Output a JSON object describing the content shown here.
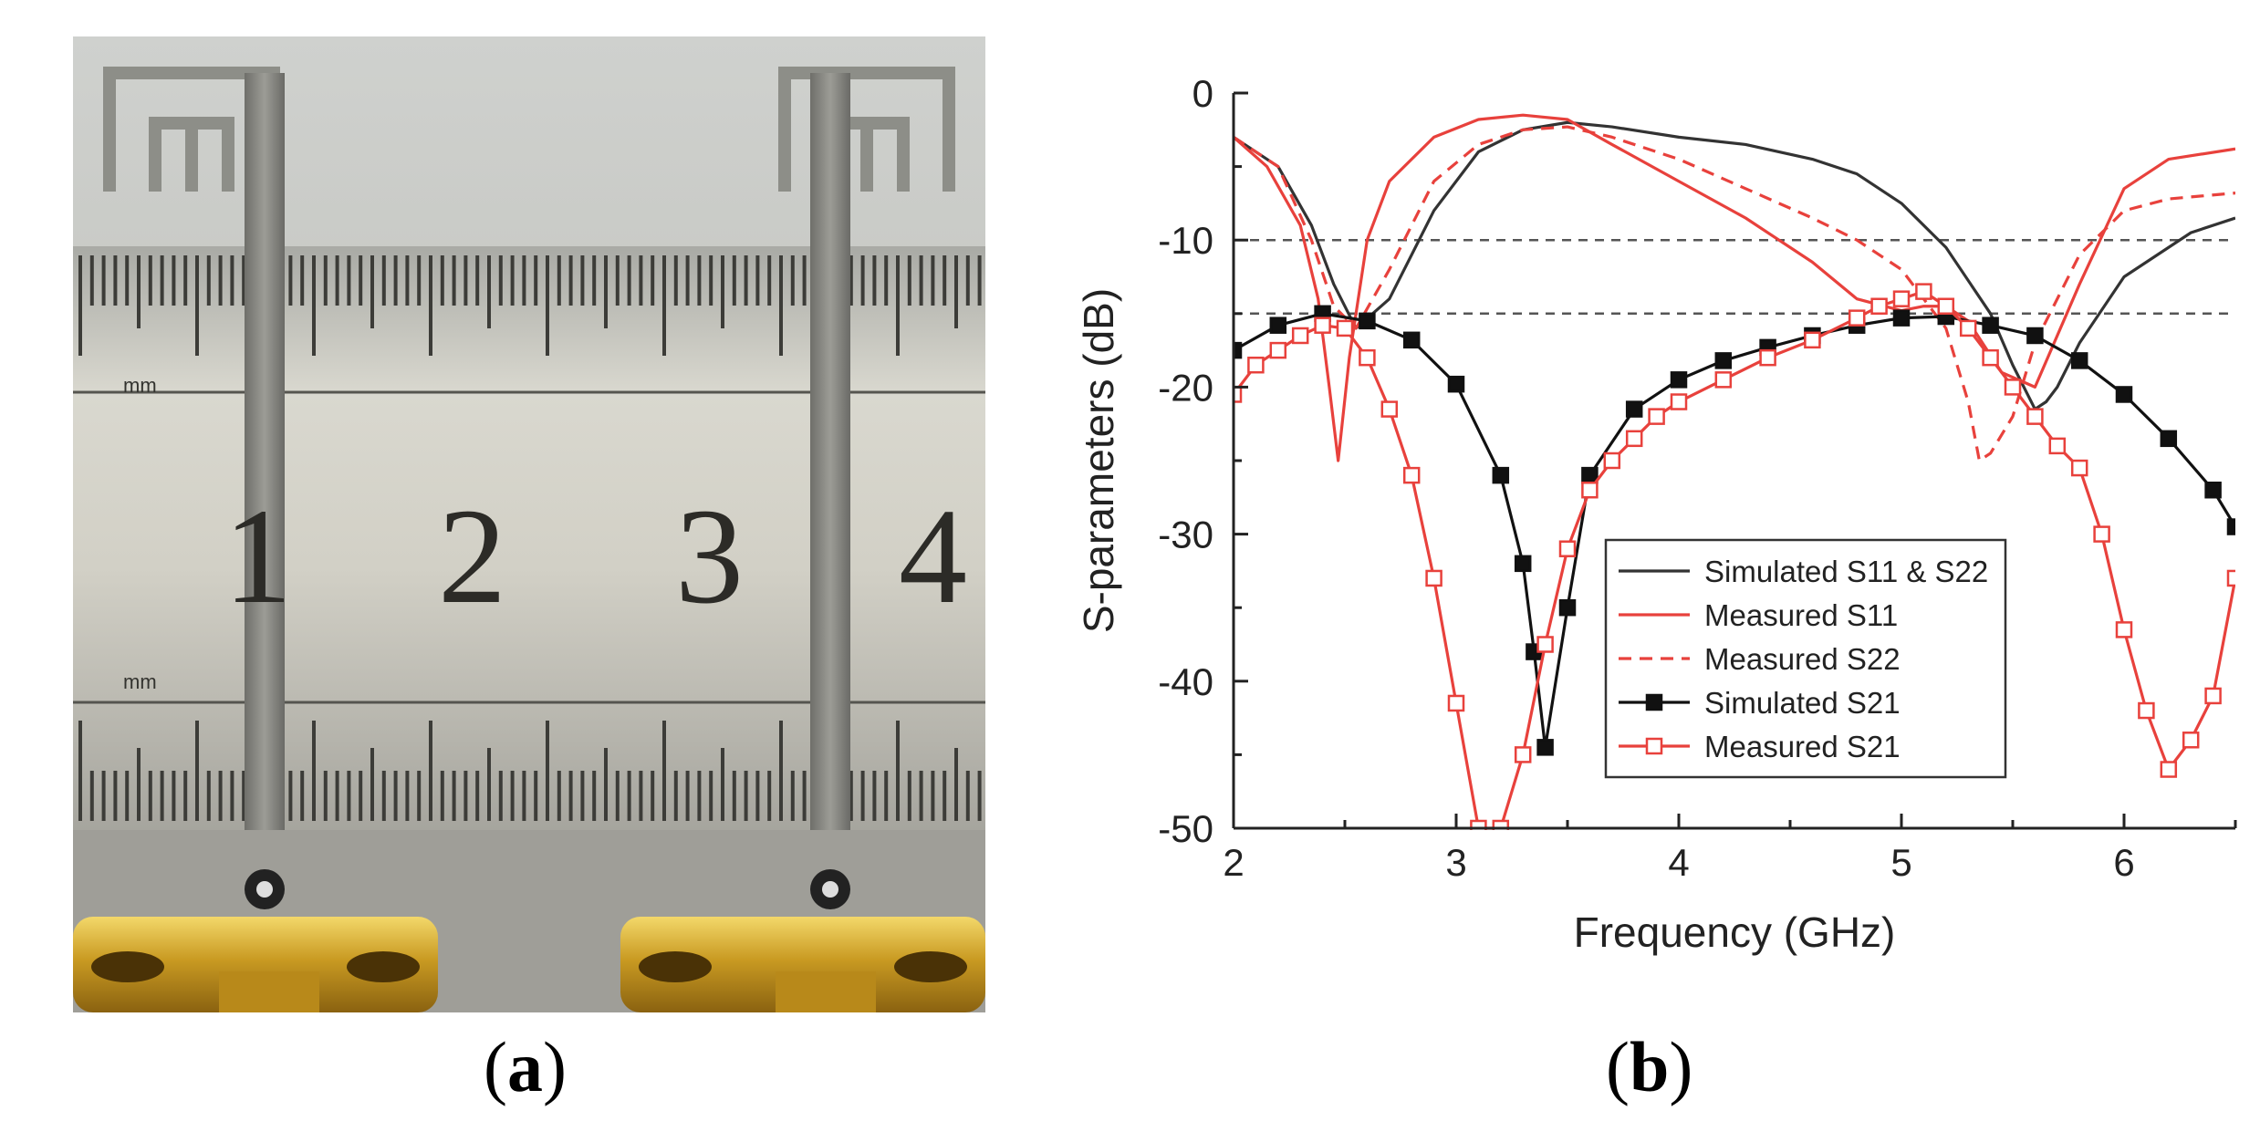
{
  "panels": {
    "a": {
      "open": "(",
      "letter": "a",
      "close": ")"
    },
    "b": {
      "open": "(",
      "letter": "b",
      "close": ")"
    }
  },
  "photo": {
    "ruler_numbers": [
      "1",
      "2",
      "3",
      "4"
    ],
    "ruler_units": [
      "mm",
      "mm"
    ]
  },
  "colors": {
    "simulated": "#333333",
    "measured": "#e8413c",
    "reference_lines": "#555555"
  },
  "chart_data": {
    "type": "line",
    "xlabel": "Frequency (GHz)",
    "ylabel": "S-parameters (dB)",
    "xlim": [
      2,
      6.5
    ],
    "ylim": [
      -50,
      0
    ],
    "xticks": [
      2,
      3,
      4,
      5,
      6
    ],
    "yticks": [
      0,
      -10,
      -20,
      -30,
      -40,
      -50
    ],
    "reference_lines": [
      -10,
      -15
    ],
    "grid": false,
    "legend_position": "lower-center",
    "series": [
      {
        "name": "Simulated S11 & S22",
        "style": "solid",
        "color": "#333333",
        "marker": "none",
        "x": [
          2.0,
          2.2,
          2.35,
          2.45,
          2.55,
          2.7,
          2.9,
          3.1,
          3.3,
          3.5,
          3.7,
          4.0,
          4.3,
          4.6,
          4.8,
          5.0,
          5.2,
          5.4,
          5.5,
          5.6,
          5.65,
          5.7,
          5.8,
          6.0,
          6.3,
          6.5
        ],
        "y": [
          -3,
          -5,
          -9,
          -13,
          -16,
          -14,
          -8,
          -4,
          -2.5,
          -2.0,
          -2.3,
          -3,
          -3.5,
          -4.5,
          -5.5,
          -7.5,
          -10.5,
          -15,
          -18.5,
          -21.5,
          -21,
          -20,
          -17,
          -12.5,
          -9.5,
          -8.5
        ]
      },
      {
        "name": "Measured S11",
        "style": "solid",
        "color": "#e8413c",
        "marker": "none",
        "x": [
          2.0,
          2.15,
          2.3,
          2.38,
          2.43,
          2.47,
          2.52,
          2.6,
          2.7,
          2.9,
          3.1,
          3.3,
          3.5,
          3.7,
          4.0,
          4.3,
          4.6,
          4.8,
          5.0,
          5.1,
          5.2,
          5.3,
          5.45,
          5.6,
          5.8,
          6.0,
          6.2,
          6.5
        ],
        "y": [
          -3,
          -5,
          -9,
          -14,
          -20,
          -25,
          -18,
          -10,
          -6,
          -3,
          -1.8,
          -1.5,
          -1.8,
          -3.5,
          -6,
          -8.5,
          -11.5,
          -14,
          -14.8,
          -14.5,
          -14.5,
          -15.5,
          -19,
          -20,
          -13,
          -6.5,
          -4.5,
          -3.8
        ]
      },
      {
        "name": "Measured S22",
        "style": "dashed",
        "color": "#e8413c",
        "marker": "none",
        "x": [
          2.0,
          2.2,
          2.35,
          2.45,
          2.55,
          2.7,
          2.9,
          3.1,
          3.3,
          3.5,
          3.7,
          4.0,
          4.3,
          4.6,
          4.8,
          5.0,
          5.2,
          5.3,
          5.35,
          5.4,
          5.5,
          5.6,
          5.8,
          6.0,
          6.2,
          6.5
        ],
        "y": [
          -3,
          -5,
          -10,
          -14.5,
          -16,
          -12,
          -6,
          -3.5,
          -2.5,
          -2.3,
          -3,
          -4.5,
          -6.5,
          -8.5,
          -10,
          -12,
          -16,
          -21,
          -25,
          -24.5,
          -22,
          -17,
          -11,
          -8,
          -7.2,
          -6.8
        ]
      },
      {
        "name": "Simulated S21",
        "style": "solid",
        "color": "#111111",
        "marker": "filled-square",
        "x": [
          2.0,
          2.2,
          2.4,
          2.6,
          2.8,
          3.0,
          3.2,
          3.3,
          3.35,
          3.4,
          3.5,
          3.6,
          3.8,
          4.0,
          4.2,
          4.4,
          4.6,
          4.8,
          5.0,
          5.2,
          5.4,
          5.6,
          5.8,
          6.0,
          6.2,
          6.4,
          6.5
        ],
        "y": [
          -17.5,
          -15.8,
          -15,
          -15.5,
          -16.8,
          -19.8,
          -26,
          -32,
          -38,
          -44.5,
          -35,
          -26,
          -21.5,
          -19.5,
          -18.2,
          -17.3,
          -16.5,
          -15.8,
          -15.3,
          -15.2,
          -15.8,
          -16.5,
          -18.2,
          -20.5,
          -23.5,
          -27,
          -29.5
        ]
      },
      {
        "name": "Measured S21",
        "style": "solid",
        "color": "#e8413c",
        "marker": "open-square",
        "x": [
          2.0,
          2.1,
          2.2,
          2.3,
          2.4,
          2.5,
          2.6,
          2.7,
          2.8,
          2.9,
          3.0,
          3.1,
          3.2,
          3.3,
          3.4,
          3.5,
          3.6,
          3.7,
          3.8,
          3.9,
          4.0,
          4.2,
          4.4,
          4.6,
          4.8,
          4.9,
          5.0,
          5.1,
          5.2,
          5.3,
          5.4,
          5.5,
          5.6,
          5.7,
          5.8,
          5.9,
          6.0,
          6.1,
          6.2,
          6.3,
          6.4,
          6.5
        ],
        "y": [
          -20.5,
          -18.5,
          -17.5,
          -16.5,
          -15.8,
          -16,
          -18,
          -21.5,
          -26,
          -33,
          -41.5,
          -50,
          -50,
          -45,
          -37.5,
          -31,
          -27,
          -25,
          -23.5,
          -22,
          -21,
          -19.5,
          -18,
          -16.8,
          -15.3,
          -14.5,
          -14,
          -13.5,
          -14.5,
          -16,
          -18,
          -20,
          -22,
          -24,
          -25.5,
          -30,
          -36.5,
          -42,
          -46,
          -44,
          -41,
          -33
        ]
      }
    ]
  }
}
